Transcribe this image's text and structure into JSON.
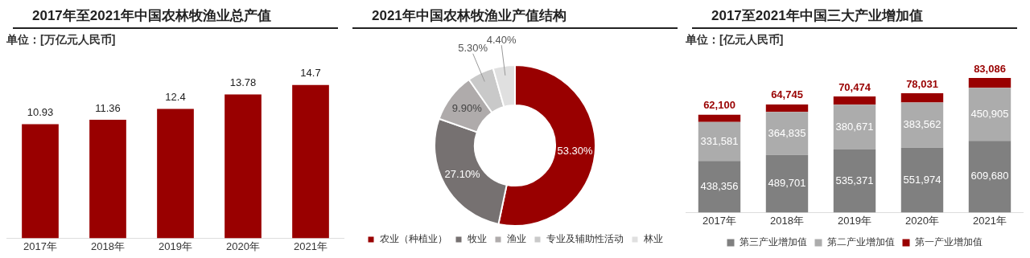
{
  "chart_data": [
    {
      "type": "bar",
      "title": "2017年至2021年中国农林牧渔业总产值",
      "subtitle": "单位：[万亿元人民币]",
      "categories": [
        "2017年",
        "2018年",
        "2019年",
        "2020年",
        "2021年"
      ],
      "values": [
        10.93,
        11.36,
        12.4,
        13.78,
        14.7
      ],
      "color": "#990000",
      "data_labels": true,
      "tick_labels": "x",
      "grid": false,
      "legend": false
    },
    {
      "type": "donut",
      "title": "2021年中国农林牧渔业产值结构",
      "categories": [
        "农业（种植业）",
        "牧业",
        "渔业",
        "专业及辅助性活动",
        "林业"
      ],
      "values": [
        53.3,
        27.1,
        9.9,
        5.3,
        4.4
      ],
      "value_labels": [
        "53.30%",
        "27.10%",
        "9.90%",
        "5.30%",
        "4.40%"
      ],
      "colors": [
        "#990000",
        "#767171",
        "#afabab",
        "#c9c9c9",
        "#e0e0e0"
      ],
      "legend": "bottom"
    },
    {
      "type": "bar",
      "stacked": true,
      "title": "2017至2021年中国三大产业增加值",
      "subtitle": "单位：[亿元人民币]",
      "categories": [
        "2017年",
        "2018年",
        "2019年",
        "2020年",
        "2021年"
      ],
      "tick_labels": "x",
      "grid": false,
      "legend": "bottom",
      "series": [
        {
          "name": "第三产业增加值",
          "color": "#808080",
          "values": [
            438356,
            489701,
            535371,
            551974,
            609680
          ],
          "value_labels": [
            "438,356",
            "489,701",
            "535,371",
            "551,974",
            "609,680"
          ]
        },
        {
          "name": "第二产业增加值",
          "color": "#acacac",
          "values": [
            331581,
            364835,
            380671,
            383562,
            450905
          ],
          "value_labels": [
            "331,581",
            "364,835",
            "380,671",
            "383,562",
            "450,905"
          ]
        },
        {
          "name": "第一产业增加值",
          "color": "#990000",
          "values": [
            62100,
            64745,
            70474,
            78031,
            83086
          ],
          "value_labels": [
            "62,100",
            "64,745",
            "70,474",
            "78,031",
            "83,086"
          ]
        }
      ]
    }
  ]
}
